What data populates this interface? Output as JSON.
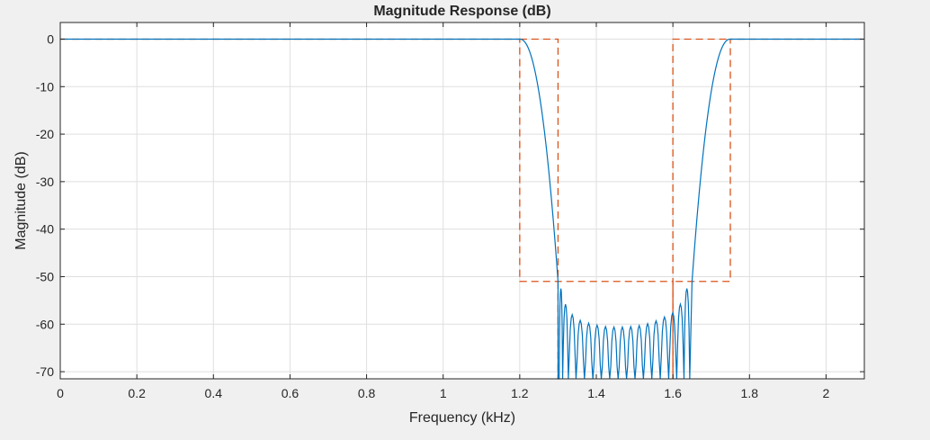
{
  "chart_data": {
    "type": "line",
    "title": "Magnitude Response (dB)",
    "xlabel": "Frequency (kHz)",
    "ylabel": "Magnitude (dB)",
    "xlim": [
      0,
      2.1
    ],
    "ylim": [
      -71.5,
      3.5
    ],
    "grid": true,
    "x_ticks": [
      0,
      0.2,
      0.4,
      0.6,
      0.8,
      1,
      1.2,
      1.4,
      1.6,
      1.8,
      2
    ],
    "x_tick_labels": [
      "0",
      "0.2",
      "0.4",
      "0.6",
      "0.8",
      "1",
      "1.2",
      "1.4",
      "1.6",
      "1.8",
      "2"
    ],
    "y_ticks": [
      0,
      -10,
      -20,
      -30,
      -40,
      -50,
      -60,
      -70
    ],
    "y_tick_labels": [
      "0",
      "-10",
      "-20",
      "-30",
      "-40",
      "-50",
      "-60",
      "-70"
    ],
    "series": [
      {
        "role": "response",
        "color": "#0072bd",
        "passbands": [
          [
            0,
            1.2
          ],
          [
            1.75,
            2.1
          ]
        ],
        "transition_low": {
          "f0": 1.2,
          "f1": 1.3,
          "db_end": -51
        },
        "transition_high": {
          "f0": 1.65,
          "f1": 1.75,
          "db_start": -51
        },
        "stopband": [
          1.3,
          1.65
        ],
        "stopband_peaks": [
          {
            "f": 1.306,
            "db": -52.5
          },
          {
            "f": 1.318,
            "db": -55.8
          },
          {
            "f": 1.336,
            "db": -58.0
          },
          {
            "f": 1.358,
            "db": -59.2
          },
          {
            "f": 1.38,
            "db": -59.8
          },
          {
            "f": 1.402,
            "db": -60.2
          },
          {
            "f": 1.424,
            "db": -60.5
          },
          {
            "f": 1.446,
            "db": -60.6
          },
          {
            "f": 1.468,
            "db": -60.6
          },
          {
            "f": 1.49,
            "db": -60.5
          },
          {
            "f": 1.512,
            "db": -60.3
          },
          {
            "f": 1.534,
            "db": -59.9
          },
          {
            "f": 1.556,
            "db": -59.3
          },
          {
            "f": 1.578,
            "db": -58.5
          },
          {
            "f": 1.6,
            "db": -57.6
          },
          {
            "f": 1.62,
            "db": -55.8
          },
          {
            "f": 1.638,
            "db": -52.5
          }
        ]
      },
      {
        "role": "mask",
        "color": "#d95319",
        "dashed": true,
        "points": [
          [
            0,
            0
          ],
          [
            1.2,
            0
          ],
          [
            1.2,
            -51
          ],
          [
            1.6,
            -51
          ],
          [
            1.6,
            -71.5
          ],
          [
            1.6,
            -51
          ],
          [
            1.75,
            -51
          ],
          [
            1.75,
            0
          ],
          [
            2.1,
            0
          ]
        ],
        "extra_segments": [
          [
            [
              1.2,
              0
            ],
            [
              1.3,
              0
            ],
            [
              1.3,
              -71.5
            ]
          ],
          [
            [
              1.6,
              -71.5
            ],
            [
              1.6,
              0
            ],
            [
              1.75,
              0
            ]
          ]
        ]
      }
    ]
  }
}
